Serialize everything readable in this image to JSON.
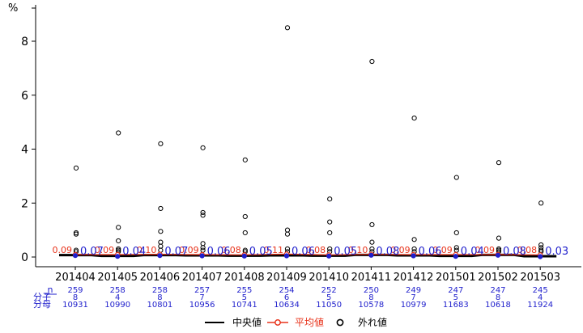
{
  "chart_data": {
    "type": "line",
    "unit_label": "%",
    "categories": [
      "201404",
      "201405",
      "201406",
      "201407",
      "201408",
      "201409",
      "201410",
      "201411",
      "201412",
      "201501",
      "201502",
      "201503"
    ],
    "ylim": [
      0,
      9
    ],
    "yticks": [
      0,
      2,
      4,
      6,
      8
    ],
    "series": [
      {
        "name": "中央値",
        "color": "#000000",
        "values": [
          0.07,
          0.04,
          0.07,
          0.06,
          0.05,
          0.06,
          0.05,
          0.08,
          0.06,
          0.04,
          0.08,
          0.03
        ]
      },
      {
        "name": "平均値",
        "color": "#e8341c",
        "values": [
          0.09,
          0.09,
          0.1,
          0.09,
          0.08,
          0.11,
          0.08,
          0.1,
          0.09,
          0.09,
          0.09,
          0.08
        ]
      }
    ],
    "mean_labels": [
      "0.09",
      "0.09",
      "0.10",
      "0.09",
      "0.08",
      "0.11",
      "0.08",
      "0.10",
      "0.09",
      "0.09",
      "0.09",
      "0.08"
    ],
    "median_labels": [
      "0.07",
      "0.04",
      "0.07",
      "0.06",
      "0.05",
      "0.06",
      "0.05",
      "0.08",
      "0.06",
      "0.04",
      "0.08",
      "0.03"
    ],
    "outliers": [
      [
        3.3,
        0.9,
        0.85,
        0.25,
        0.2
      ],
      [
        4.6,
        1.1,
        0.6,
        0.3,
        0.25,
        0.2
      ],
      [
        4.2,
        1.8,
        0.95,
        0.55,
        0.4,
        0.25
      ],
      [
        4.05,
        1.65,
        1.55,
        0.5,
        0.35,
        0.25
      ],
      [
        3.6,
        1.5,
        0.9,
        0.25,
        0.2
      ],
      [
        8.5,
        1.0,
        0.85,
        0.3,
        0.2
      ],
      [
        2.15,
        1.3,
        0.9,
        0.3,
        0.2
      ],
      [
        7.25,
        1.2,
        0.55,
        0.3,
        0.2
      ],
      [
        5.15,
        0.65,
        0.3,
        0.2
      ],
      [
        2.95,
        0.9,
        0.35,
        0.25
      ],
      [
        3.5,
        0.7,
        0.3,
        0.25,
        0.2
      ],
      [
        2.0,
        0.45,
        0.35,
        0.25,
        0.2
      ]
    ],
    "table": {
      "row_labels": [
        "n",
        "分子",
        "分母"
      ],
      "n": [
        "259",
        "258",
        "258",
        "257",
        "255",
        "254",
        "252",
        "250",
        "249",
        "247",
        "247",
        "245"
      ],
      "numerator": [
        "8",
        "4",
        "8",
        "7",
        "5",
        "6",
        "5",
        "8",
        "7",
        "5",
        "8",
        "4"
      ],
      "denominator": [
        "10931",
        "10990",
        "10801",
        "10956",
        "10741",
        "10634",
        "11050",
        "10578",
        "10979",
        "11683",
        "10618",
        "11924"
      ]
    },
    "legend": {
      "position": "bottom",
      "items": [
        {
          "label": "中央値",
          "symbol": "line",
          "color": "#000000"
        },
        {
          "label": "平均値",
          "symbol": "line-circle",
          "color": "#e8341c"
        },
        {
          "label": "外れ値",
          "symbol": "circle",
          "color": "#000000"
        }
      ]
    }
  }
}
